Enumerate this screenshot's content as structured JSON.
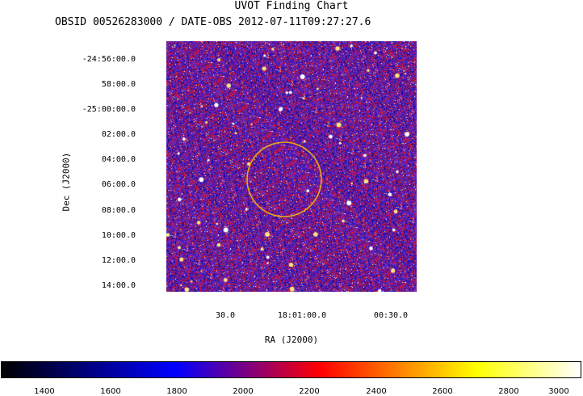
{
  "chart": {
    "title": "UVOT Finding Chart",
    "subtitle": "OBSID 00526283000 / DATE-OBS 2012-07-11T09:27:27.6",
    "ylabel": "Dec (J2000)",
    "xlabel": "RA (J2000)",
    "dec_ticks": [
      "-24:56:00.0",
      "58:00.0",
      "-25:00:00.0",
      "02:00.0",
      "04:00.0",
      "06:00.0",
      "08:00.0",
      "10:00.0",
      "12:00.0",
      "14:00.0"
    ],
    "ra_ticks": [
      "30.0",
      "18:01:00.0",
      "00:30.0"
    ],
    "colorbar_ticks": [
      "1400",
      "1600",
      "1800",
      "2000",
      "2200",
      "2400",
      "2600",
      "2800",
      "3000"
    ],
    "colors": {
      "ring": "#e8a814",
      "colormap": [
        "#000000",
        "#0000ff",
        "#ff0000",
        "#ffff00",
        "#ffffff"
      ]
    }
  }
}
